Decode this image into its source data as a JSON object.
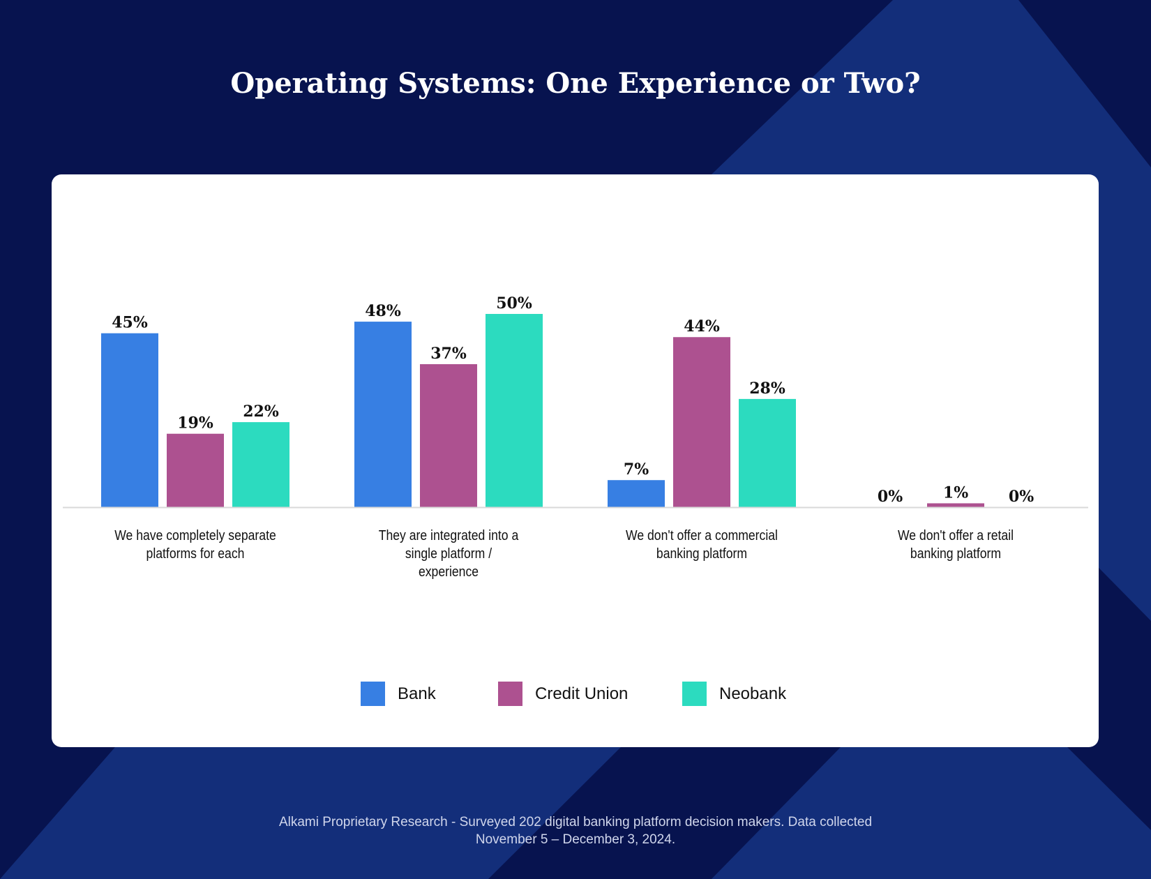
{
  "title": "Operating Systems: One Experience or Two?",
  "footer": {
    "line1": "Alkami Proprietary Research - Surveyed 202 digital banking platform decision makers. Data collected",
    "line2": "November 5 – December 3, 2024."
  },
  "colors": {
    "background": "#07134f",
    "background_accent": "#132e7a",
    "card": "#ffffff"
  },
  "chart_data": {
    "type": "bar",
    "title": "Operating Systems: One Experience or Two?",
    "categories": [
      [
        "We have completely separate",
        "platforms for each"
      ],
      [
        "They are integrated into a",
        "single platform /",
        "experience"
      ],
      [
        "We don't offer a commercial",
        "banking platform"
      ],
      [
        "We don't offer a retail",
        "banking platform"
      ]
    ],
    "series": [
      {
        "name": "Bank",
        "color": "#377fe3",
        "values": [
          45,
          48,
          7,
          0
        ]
      },
      {
        "name": "Credit Union",
        "color": "#ad5190",
        "values": [
          19,
          37,
          44,
          1
        ]
      },
      {
        "name": "Neobank",
        "color": "#2cdbbf",
        "values": [
          22,
          50,
          28,
          0
        ]
      }
    ],
    "value_format": "{v}%",
    "ylim": [
      0,
      50
    ],
    "grid": false,
    "legend": "bottom-center"
  }
}
